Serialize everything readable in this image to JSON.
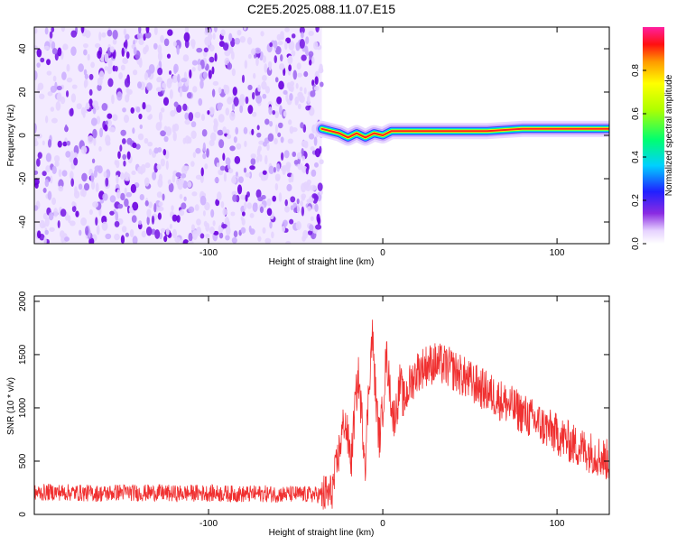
{
  "figure": {
    "title": "C2E5.2025.088.11.07.E15"
  },
  "chart_data": [
    {
      "type": "heatmap",
      "xlabel": "Height of straight line (km)",
      "ylabel": "Frequency (Hz)",
      "xlim": [
        -200,
        130
      ],
      "ylim": [
        -50,
        50
      ],
      "xticks": [
        -100,
        0,
        100
      ],
      "yticks": [
        -40,
        -20,
        0,
        20,
        40
      ],
      "grid": false,
      "noise_region": {
        "x_range": [
          -200,
          -35
        ],
        "y_range": [
          -50,
          50
        ]
      },
      "signal_track": {
        "x": [
          -35,
          -30,
          -25,
          -20,
          -15,
          -10,
          -5,
          0,
          5,
          10,
          20,
          40,
          60,
          80,
          100,
          120,
          130
        ],
        "freq": [
          3,
          2,
          1,
          -1,
          1,
          -1,
          1,
          0,
          2,
          2,
          2,
          2,
          2,
          3,
          3,
          3,
          3
        ]
      },
      "colorbar": {
        "label": "Normalized spectral amplitude",
        "range": [
          0,
          1
        ],
        "ticks": [
          0.0,
          0.2,
          0.4,
          0.6,
          0.8
        ]
      }
    },
    {
      "type": "line",
      "xlabel": "Height of straight line (km)",
      "ylabel": "SNR (10 * v/v)",
      "xlim": [
        -200,
        130
      ],
      "ylim": [
        0,
        2050
      ],
      "xticks": [
        -100,
        0,
        100
      ],
      "yticks": [
        0,
        500,
        1000,
        1500,
        2000
      ],
      "grid": false,
      "series": [
        {
          "color": "#f03030",
          "x": [
            -200,
            -190,
            -180,
            -170,
            -160,
            -150,
            -140,
            -130,
            -120,
            -110,
            -100,
            -90,
            -80,
            -70,
            -60,
            -50,
            -40,
            -35,
            -30,
            -28,
            -26,
            -24,
            -22,
            -20,
            -18,
            -16,
            -14,
            -12,
            -10,
            -8,
            -6,
            -4,
            -2,
            0,
            2,
            4,
            6,
            8,
            10,
            12,
            15,
            20,
            25,
            30,
            35,
            40,
            50,
            60,
            70,
            80,
            90,
            100,
            110,
            120,
            130
          ],
          "y": [
            200,
            210,
            205,
            200,
            195,
            210,
            200,
            205,
            195,
            200,
            200,
            195,
            190,
            195,
            190,
            190,
            185,
            185,
            190,
            300,
            500,
            700,
            900,
            700,
            500,
            1000,
            1300,
            900,
            500,
            1200,
            1700,
            1100,
            700,
            1000,
            1500,
            1200,
            900,
            1000,
            1250,
            1050,
            1200,
            1350,
            1400,
            1420,
            1400,
            1360,
            1250,
            1150,
            1050,
            950,
            850,
            750,
            650,
            580,
            500
          ]
        }
      ]
    }
  ]
}
